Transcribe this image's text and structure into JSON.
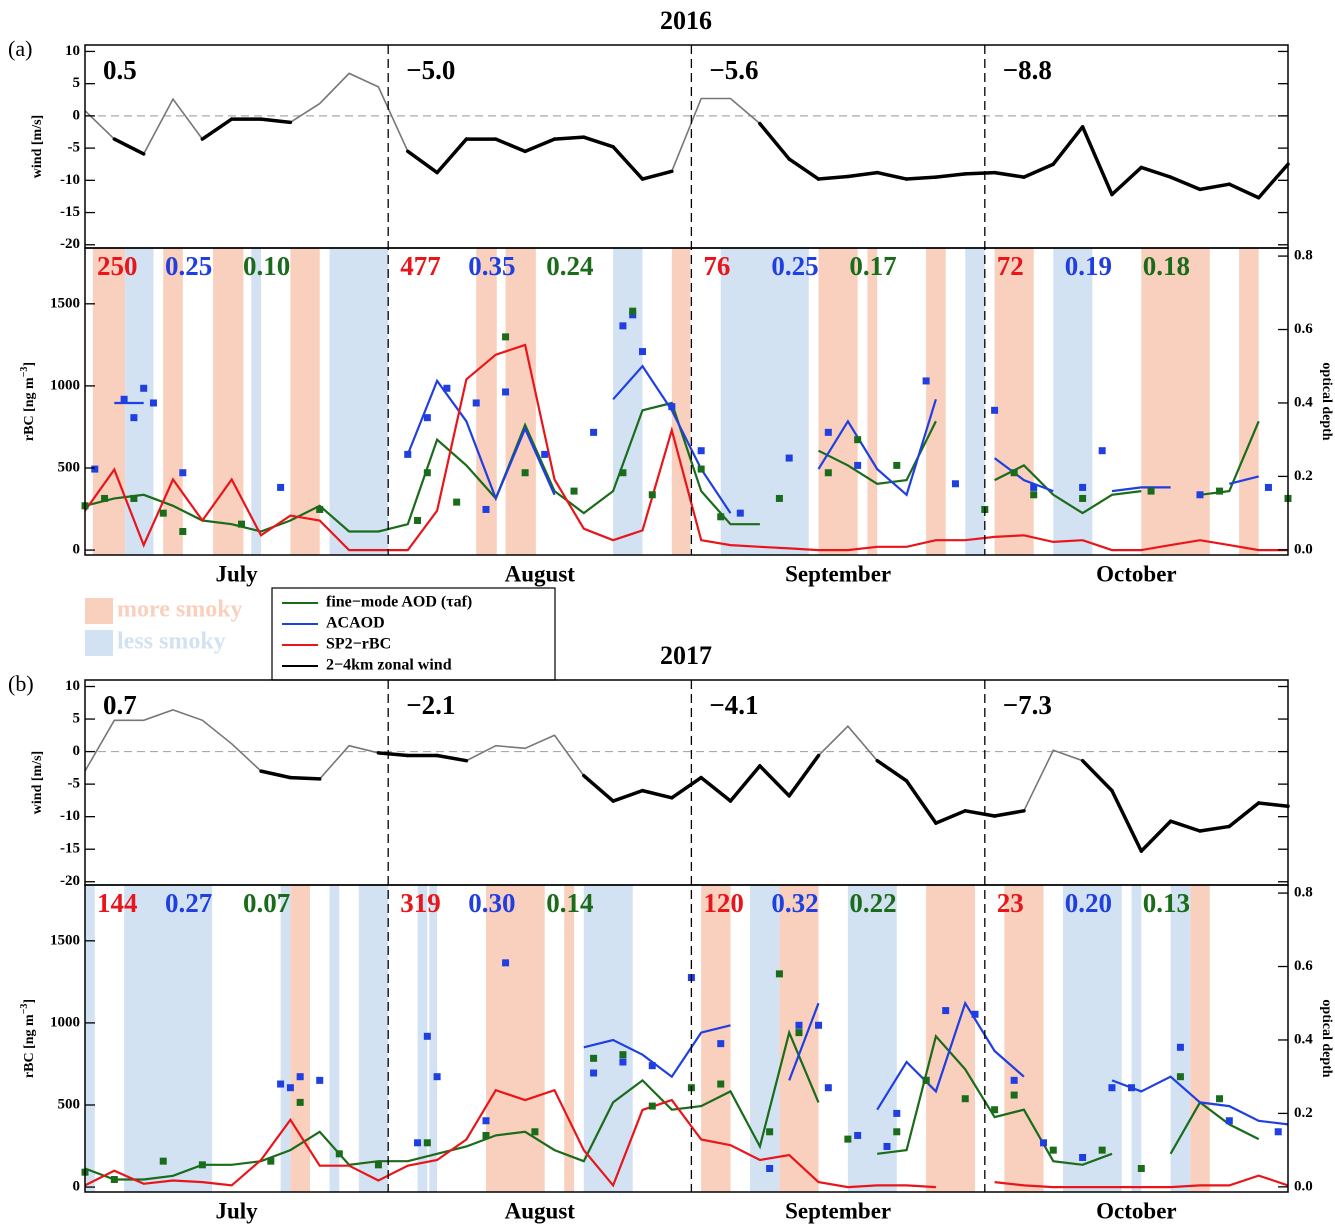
{
  "shading": [
    {
      "name": "more smoky",
      "color": "#f9cfbd"
    },
    {
      "name": "less smoky",
      "color": "#d2e2f3"
    }
  ],
  "chart_data": [
    {
      "type": "line",
      "title": "2016",
      "panel_label": "(a)",
      "wind_ylabel": "wind [m/s]",
      "ylabel": [
        "rBC [ng m",
        "−3",
        "]"
      ],
      "y2label": "optical depth",
      "x": [
        0,
        3,
        6,
        9,
        12,
        15,
        18,
        21,
        24,
        27,
        30,
        33,
        36,
        39,
        42,
        45,
        48,
        51,
        54,
        57,
        60,
        63,
        66,
        69,
        72,
        75,
        78,
        81,
        84,
        87,
        90,
        93,
        96,
        99,
        102,
        105,
        108,
        111,
        114,
        117,
        120,
        123
      ],
      "xlim": [
        0,
        123
      ],
      "xticks": [
        {
          "value": 15.5,
          "label": "July"
        },
        {
          "value": 46.5,
          "label": "August"
        },
        {
          "value": 77,
          "label": "September"
        },
        {
          "value": 107.5,
          "label": "October"
        }
      ],
      "vlines": [
        31,
        62,
        92
      ],
      "wind_ylim": [
        -20.5,
        11
      ],
      "wind_yticks": [
        10,
        5,
        0,
        -5,
        -10,
        -15,
        -20
      ],
      "wind_ref": 0,
      "wind_positive_color": "#777777",
      "ylim": [
        -30,
        1840
      ],
      "yticks": [
        0,
        500,
        1000,
        1500
      ],
      "y2lim": [
        -0.014,
        0.822
      ],
      "y2ticks": [
        {
          "value": 0,
          "label": "0.0"
        },
        0.2,
        0.4,
        0.6,
        0.8
      ],
      "shaded": [
        [
          [
            0.8,
            4.1
          ],
          [
            8,
            10
          ],
          [
            13.1,
            16.2
          ],
          [
            21,
            24
          ],
          [
            40,
            42.1
          ],
          [
            43,
            46.1
          ],
          [
            60,
            61.9
          ],
          [
            75,
            79
          ],
          [
            80,
            81
          ],
          [
            86,
            88
          ],
          [
            93,
            97
          ],
          [
            108,
            115
          ],
          [
            118,
            120
          ]
        ],
        [
          [
            4.1,
            7
          ],
          [
            17,
            18
          ],
          [
            25,
            31
          ],
          [
            54,
            57
          ],
          [
            65,
            74
          ],
          [
            90,
            92
          ],
          [
            99,
            103
          ]
        ]
      ],
      "series": [
        {
          "name": "fine−mode AOD (τaf)",
          "color": "#1a6b1a",
          "axis": "y2",
          "values": [
            0.12,
            0.14,
            0.15,
            0.12,
            0.08,
            0.07,
            0.05,
            0.08,
            0.12,
            0.05,
            0.05,
            0.07,
            0.3,
            0.23,
            0.14,
            0.34,
            0.16,
            0.1,
            0.16,
            0.38,
            0.4,
            0.16,
            0.07,
            0.07,
            null,
            0.27,
            0.23,
            0.18,
            0.19,
            0.35,
            null,
            0.19,
            0.23,
            0.15,
            0.1,
            0.15,
            0.16,
            null,
            0.15,
            0.16,
            0.35,
            null
          ]
        },
        {
          "name": "ACAOD",
          "color": "#1f3fe0",
          "axis": "y2",
          "values": [
            null,
            0.4,
            0.4,
            null,
            null,
            null,
            null,
            null,
            null,
            null,
            null,
            0.26,
            0.46,
            0.35,
            0.14,
            0.33,
            0.15,
            null,
            0.41,
            0.5,
            0.38,
            0.22,
            0.1,
            null,
            null,
            0.22,
            0.35,
            0.22,
            0.15,
            0.41,
            null,
            0.25,
            0.19,
            0.16,
            null,
            0.16,
            0.17,
            0.17,
            null,
            0.18,
            0.2,
            null
          ]
        },
        {
          "name": "SP2−rBC",
          "color": "#e8161b",
          "axis": "y",
          "values": [
            240,
            490,
            30,
            430,
            180,
            430,
            90,
            210,
            180,
            0,
            0,
            0,
            240,
            1040,
            1190,
            1250,
            430,
            130,
            60,
            120,
            730,
            60,
            30,
            20,
            10,
            0,
            0,
            20,
            20,
            60,
            60,
            80,
            90,
            50,
            60,
            0,
            0,
            30,
            60,
            30,
            0,
            0
          ]
        },
        {
          "name": "2−4km zonal wind",
          "color": "#000000",
          "axis": "wind",
          "values": [
            0.8,
            -3.6,
            -5.9,
            2.6,
            -3.6,
            -0.5,
            -0.5,
            -1,
            1.9,
            6.6,
            4.5,
            -5.5,
            -8.8,
            -3.6,
            -3.6,
            -5.5,
            -3.6,
            -3.3,
            -4.8,
            -9.8,
            -8.6,
            2.7,
            2.7,
            -1.2,
            -6.7,
            -9.8,
            -9.4,
            -8.8,
            -9.8,
            -9.5,
            -9,
            -8.8,
            -9.5,
            -7.5,
            -1.7,
            -12.2,
            -8,
            -9.5,
            -11.4,
            -10.6,
            -12.7,
            -7.5
          ]
        }
      ],
      "markers": [
        {
          "color": "#1f3fe0",
          "axis": "y2",
          "x": [
            1,
            4,
            5,
            6,
            7,
            10,
            20,
            33,
            35,
            37,
            40,
            41,
            43,
            47,
            52,
            55,
            56,
            57,
            60,
            63,
            67,
            72,
            76,
            79,
            86,
            89,
            93,
            97,
            102,
            104,
            114,
            121
          ],
          "values": [
            0.22,
            0.41,
            0.36,
            0.44,
            0.4,
            0.21,
            0.17,
            0.26,
            0.36,
            0.44,
            0.4,
            0.11,
            0.43,
            0.26,
            0.32,
            0.61,
            0.64,
            0.54,
            0.39,
            0.27,
            0.1,
            0.25,
            0.32,
            0.23,
            0.46,
            0.18,
            0.38,
            0.17,
            0.17,
            0.27,
            0.15,
            0.17
          ]
        },
        {
          "color": "#1a6b1a",
          "axis": "y2",
          "x": [
            0,
            2,
            5,
            8,
            10,
            16,
            24,
            34,
            35,
            38,
            43,
            45,
            50,
            55,
            56,
            58,
            63,
            65,
            71,
            76,
            79,
            83,
            92,
            95,
            97,
            102,
            109,
            116,
            123
          ],
          "values": [
            0.12,
            0.14,
            0.14,
            0.1,
            0.05,
            0.07,
            0.11,
            0.08,
            0.21,
            0.13,
            0.58,
            0.21,
            0.16,
            0.21,
            0.65,
            0.15,
            0.22,
            0.09,
            0.14,
            0.21,
            0.3,
            0.23,
            0.11,
            0.21,
            0.15,
            0.14,
            0.16,
            0.16,
            0.14
          ]
        }
      ],
      "stats": [
        {
          "row": "wind",
          "color": "#000000",
          "values": [
            0.5,
            -5,
            -5.6,
            -8.8
          ],
          "value_labels": [
            "0.5",
            "−5.0",
            "−5.6",
            "−8.8"
          ]
        },
        {
          "row": "lower",
          "color": "#e8161b",
          "values": [
            250,
            477,
            76,
            72
          ]
        },
        {
          "row": "lower",
          "color": "#1f3fe0",
          "values": [
            0.25,
            0.35,
            0.25,
            0.19
          ]
        },
        {
          "row": "lower",
          "color": "#1a6b1a",
          "values": [
            0.1,
            0.24,
            0.17,
            0.18
          ],
          "value_labels": [
            "0.10",
            "0.24",
            "0.17",
            "0.18"
          ]
        }
      ]
    },
    {
      "type": "line",
      "title": "2017",
      "panel_label": "(b)",
      "wind_ylabel": "wind [m/s]",
      "ylabel": [
        "rBC [ng m",
        "−3",
        "]"
      ],
      "y2label": "optical depth",
      "x": [
        0,
        3,
        6,
        9,
        12,
        15,
        18,
        21,
        24,
        27,
        30,
        33,
        36,
        39,
        42,
        45,
        48,
        51,
        54,
        57,
        60,
        63,
        66,
        69,
        72,
        75,
        78,
        81,
        84,
        87,
        90,
        93,
        96,
        99,
        102,
        105,
        108,
        111,
        114,
        117,
        120,
        123
      ],
      "xlim": [
        0,
        123
      ],
      "xticks": [
        {
          "value": 15.5,
          "label": "July"
        },
        {
          "value": 46.5,
          "label": "August"
        },
        {
          "value": 77,
          "label": "September"
        },
        {
          "value": 107.5,
          "label": "October"
        }
      ],
      "vlines": [
        31,
        62,
        92
      ],
      "wind_ylim": [
        -20.5,
        11
      ],
      "wind_yticks": [
        10,
        5,
        0,
        -5,
        -10,
        -15,
        -20
      ],
      "wind_ref": 0,
      "wind_positive_color": "#777777",
      "ylim": [
        -30,
        1840
      ],
      "yticks": [
        0,
        500,
        1000,
        1500
      ],
      "y2lim": [
        -0.014,
        0.822
      ],
      "y2ticks": [
        {
          "value": 0,
          "label": "0.0"
        },
        0.2,
        0.4,
        0.6,
        0.8
      ],
      "shaded": [
        [
          [
            21,
            23
          ],
          [
            41,
            47
          ],
          [
            49,
            50
          ],
          [
            63,
            66
          ],
          [
            71,
            75
          ],
          [
            86,
            91
          ],
          [
            94,
            98
          ],
          [
            113,
            115
          ]
        ],
        [
          [
            0,
            1
          ],
          [
            4,
            13
          ],
          [
            20,
            21
          ],
          [
            25,
            26
          ],
          [
            28,
            31
          ],
          [
            34,
            35
          ],
          [
            35.2,
            36
          ],
          [
            51,
            56
          ],
          [
            68,
            71
          ],
          [
            78,
            83
          ],
          [
            100,
            106
          ],
          [
            107,
            108
          ],
          [
            111,
            113
          ]
        ]
      ],
      "series": [
        {
          "color": "#1a6b1a",
          "axis": "y2",
          "values": [
            0.05,
            0.02,
            0.02,
            0.03,
            0.06,
            0.06,
            0.07,
            0.1,
            0.15,
            0.06,
            0.07,
            0.07,
            0.09,
            0.11,
            0.14,
            0.15,
            0.1,
            0.07,
            0.23,
            0.29,
            0.21,
            0.22,
            0.26,
            0.11,
            0.42,
            0.23,
            null,
            0.09,
            0.1,
            0.41,
            0.32,
            0.19,
            0.21,
            0.07,
            0.06,
            0.09,
            null,
            0.09,
            0.23,
            0.17,
            0.13,
            null
          ]
        },
        {
          "color": "#1f3fe0",
          "axis": "y2",
          "values": [
            null,
            null,
            null,
            null,
            null,
            null,
            null,
            0.37,
            null,
            null,
            null,
            null,
            0.37,
            null,
            0.48,
            null,
            null,
            0.38,
            0.4,
            0.36,
            0.3,
            0.42,
            0.44,
            null,
            0.29,
            0.5,
            null,
            0.21,
            0.34,
            0.26,
            0.5,
            0.37,
            0.3,
            null,
            null,
            0.29,
            0.26,
            0.3,
            0.23,
            0.22,
            0.18,
            0.17
          ]
        },
        {
          "color": "#e8161b",
          "axis": "y",
          "values": [
            10,
            100,
            20,
            40,
            30,
            10,
            165,
            410,
            130,
            130,
            40,
            130,
            165,
            290,
            590,
            530,
            590,
            225,
            10,
            470,
            530,
            290,
            255,
            165,
            195,
            30,
            0,
            10,
            10,
            0,
            null,
            30,
            10,
            0,
            0,
            0,
            0,
            0,
            10,
            10,
            70,
            10
          ]
        },
        {
          "color": "#000000",
          "axis": "wind",
          "values": [
            -3,
            4.8,
            4.8,
            6.4,
            4.8,
            1.2,
            -3,
            -4,
            -4.2,
            0.9,
            -0.2,
            -0.6,
            -0.6,
            -1.4,
            0.9,
            0.5,
            2.5,
            -3.7,
            -7.6,
            -6,
            -7.1,
            -4,
            -7.6,
            -2.2,
            -6.8,
            -0.6,
            3.9,
            -1.4,
            -4.5,
            -11,
            -9.1,
            -9.9,
            -9.1,
            0.2,
            -1.4,
            -6,
            -15.3,
            -10.7,
            -12.2,
            -11.5,
            -7.9,
            -8.4
          ]
        }
      ],
      "markers": [
        {
          "color": "#1f3fe0",
          "axis": "y2",
          "x": [
            20,
            21,
            22,
            24,
            34,
            35,
            36,
            41,
            43,
            52,
            55,
            58,
            62,
            65,
            70,
            73,
            75,
            76,
            79,
            82,
            83,
            86,
            88,
            91,
            95,
            98,
            102,
            105,
            107,
            112,
            117,
            122
          ],
          "values": [
            0.28,
            0.27,
            0.3,
            0.29,
            0.12,
            0.41,
            0.3,
            0.18,
            0.61,
            0.31,
            0.34,
            0.33,
            0.57,
            0.39,
            0.05,
            0.44,
            0.44,
            0.27,
            0.14,
            0.11,
            0.2,
            0.29,
            0.48,
            0.47,
            0.29,
            0.12,
            0.08,
            0.27,
            0.27,
            0.38,
            0.18,
            0.15
          ]
        },
        {
          "color": "#1a6b1a",
          "axis": "y2",
          "x": [
            0,
            3,
            8,
            12,
            19,
            22,
            26,
            30,
            35,
            41,
            46,
            52,
            55,
            58,
            62,
            65,
            70,
            71,
            73,
            78,
            83,
            86,
            90,
            93,
            95,
            99,
            104,
            108,
            112,
            116
          ],
          "values": [
            0.04,
            0.02,
            0.07,
            0.06,
            0.07,
            0.23,
            0.09,
            0.06,
            0.12,
            0.14,
            0.15,
            0.35,
            0.36,
            0.22,
            0.27,
            0.28,
            0.15,
            0.58,
            0.42,
            0.13,
            0.15,
            0.29,
            0.24,
            0.21,
            0.25,
            0.1,
            0.1,
            0.05,
            0.3,
            0.24
          ]
        }
      ],
      "stats": [
        {
          "row": "wind",
          "color": "#000000",
          "values": [
            0.7,
            -2.1,
            -4.1,
            -7.3
          ],
          "value_labels": [
            "0.7",
            "−2.1",
            "−4.1",
            "−7.3"
          ]
        },
        {
          "row": "lower",
          "color": "#e8161b",
          "values": [
            144,
            319,
            120,
            23
          ]
        },
        {
          "row": "lower",
          "color": "#1f3fe0",
          "values": [
            0.27,
            0.3,
            0.32,
            0.2
          ],
          "value_labels": [
            "0.27",
            "0.30",
            "0.32",
            "0.20"
          ]
        },
        {
          "row": "lower",
          "color": "#1a6b1a",
          "values": [
            0.07,
            0.14,
            0.22,
            0.13
          ]
        }
      ]
    }
  ]
}
